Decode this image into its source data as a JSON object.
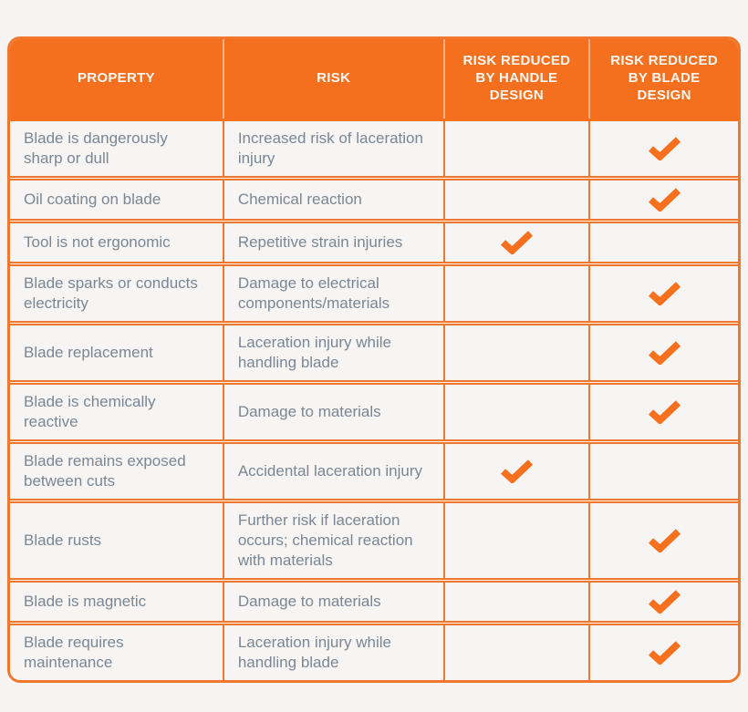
{
  "table": {
    "headers": [
      {
        "id": "property",
        "label": "PROPERTY"
      },
      {
        "id": "risk",
        "label": "RISK"
      },
      {
        "id": "handle",
        "label": "RISK REDUCED BY HANDLE DESIGN"
      },
      {
        "id": "blade",
        "label": "RISK REDUCED BY BLADE DESIGN"
      }
    ],
    "rows": [
      {
        "property": "Blade is dangerously sharp or dull",
        "risk": "Increased risk of laceration injury",
        "handle": false,
        "blade": true
      },
      {
        "property": "Oil coating on blade",
        "risk": "Chemical reaction",
        "handle": false,
        "blade": true
      },
      {
        "property": "Tool is not ergonomic",
        "risk": "Repetitive strain injuries",
        "handle": true,
        "blade": false
      },
      {
        "property": "Blade sparks or conducts electricity",
        "risk": "Damage to electrical components/materials",
        "handle": false,
        "blade": true
      },
      {
        "property": "Blade replacement",
        "risk": "Laceration injury while handling blade",
        "handle": false,
        "blade": true
      },
      {
        "property": "Blade is chemically reactive",
        "risk": "Damage to materials",
        "handle": false,
        "blade": true
      },
      {
        "property": "Blade remains exposed between cuts",
        "risk": "Accidental laceration injury",
        "handle": true,
        "blade": false
      },
      {
        "property": "Blade rusts",
        "risk": "Further risk if laceration occurs; chemical reaction with materials",
        "handle": false,
        "blade": true
      },
      {
        "property": "Blade is magnetic",
        "risk": "Damage to materials",
        "handle": false,
        "blade": true
      },
      {
        "property": "Blade requires maintenance",
        "risk": "Laceration injury while handling blade",
        "handle": false,
        "blade": true
      }
    ]
  },
  "icons": {
    "check-icon": "✔"
  },
  "colors": {
    "accent": "#f4701e",
    "border": "#f1772c",
    "check": "#f7701d",
    "body_text": "#7c8692",
    "header_text": "#fdf8f3",
    "background": "#f5f4f2"
  },
  "chart_data": {
    "type": "table",
    "title": "",
    "columns": [
      "PROPERTY",
      "RISK",
      "RISK REDUCED BY HANDLE DESIGN",
      "RISK REDUCED BY BLADE DESIGN"
    ],
    "rows": [
      [
        "Blade is dangerously sharp or dull",
        "Increased risk of laceration injury",
        "",
        "✓"
      ],
      [
        "Oil coating on blade",
        "Chemical reaction",
        "",
        "✓"
      ],
      [
        "Tool is not ergonomic",
        "Repetitive strain injuries",
        "✓",
        ""
      ],
      [
        "Blade sparks or conducts electricity",
        "Damage to electrical components/materials",
        "",
        "✓"
      ],
      [
        "Blade replacement",
        "Laceration injury while handling blade",
        "",
        "✓"
      ],
      [
        "Blade is chemically reactive",
        "Damage to materials",
        "",
        "✓"
      ],
      [
        "Blade remains exposed between cuts",
        "Accidental laceration injury",
        "✓",
        ""
      ],
      [
        "Blade rusts",
        "Further risk if laceration occurs; chemical reaction with materials",
        "",
        "✓"
      ],
      [
        "Blade is magnetic",
        "Damage to materials",
        "",
        "✓"
      ],
      [
        "Blade requires maintenance",
        "Laceration injury while handling blade",
        "",
        "✓"
      ]
    ]
  }
}
